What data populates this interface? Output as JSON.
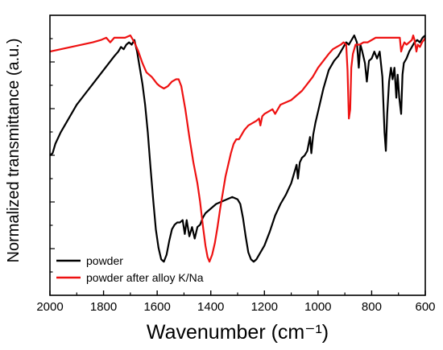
{
  "chart_data": {
    "type": "line",
    "xlabel": "Wavenumber (cm⁻¹)",
    "ylabel": "Normalized transmittance (a.u.)",
    "xlim": [
      2000,
      600
    ],
    "ylim": [
      0,
      1
    ],
    "x_reversed": true,
    "x_ticks": [
      2000,
      1800,
      1600,
      1400,
      1200,
      1000,
      800,
      600
    ],
    "x_tick_labels": [
      "2000",
      "1800",
      "1600",
      "1400",
      "1200",
      "1000",
      "800",
      "600"
    ],
    "y_tick_labels_shown": false,
    "grid": false,
    "legend_position": "bottom-left",
    "series": [
      {
        "name": "powder",
        "color": "#000000",
        "points": [
          [
            2000,
            0.48
          ],
          [
            1990,
            0.49
          ],
          [
            1980,
            0.53
          ],
          [
            1960,
            0.58
          ],
          [
            1940,
            0.62
          ],
          [
            1920,
            0.66
          ],
          [
            1900,
            0.7
          ],
          [
            1880,
            0.73
          ],
          [
            1860,
            0.76
          ],
          [
            1840,
            0.79
          ],
          [
            1820,
            0.82
          ],
          [
            1800,
            0.85
          ],
          [
            1780,
            0.88
          ],
          [
            1760,
            0.91
          ],
          [
            1745,
            0.93
          ],
          [
            1735,
            0.95
          ],
          [
            1725,
            0.94
          ],
          [
            1715,
            0.96
          ],
          [
            1705,
            0.97
          ],
          [
            1695,
            0.96
          ],
          [
            1685,
            0.98
          ],
          [
            1675,
            0.93
          ],
          [
            1665,
            0.86
          ],
          [
            1655,
            0.79
          ],
          [
            1645,
            0.7
          ],
          [
            1635,
            0.58
          ],
          [
            1625,
            0.43
          ],
          [
            1615,
            0.29
          ],
          [
            1605,
            0.16
          ],
          [
            1595,
            0.08
          ],
          [
            1585,
            0.03
          ],
          [
            1575,
            0.02
          ],
          [
            1565,
            0.05
          ],
          [
            1555,
            0.11
          ],
          [
            1545,
            0.16
          ],
          [
            1535,
            0.18
          ],
          [
            1525,
            0.19
          ],
          [
            1515,
            0.19
          ],
          [
            1505,
            0.2
          ],
          [
            1497,
            0.14
          ],
          [
            1490,
            0.2
          ],
          [
            1480,
            0.13
          ],
          [
            1470,
            0.17
          ],
          [
            1460,
            0.12
          ],
          [
            1450,
            0.17
          ],
          [
            1440,
            0.18
          ],
          [
            1430,
            0.21
          ],
          [
            1420,
            0.23
          ],
          [
            1400,
            0.25
          ],
          [
            1380,
            0.27
          ],
          [
            1360,
            0.28
          ],
          [
            1340,
            0.29
          ],
          [
            1320,
            0.3
          ],
          [
            1300,
            0.29
          ],
          [
            1290,
            0.27
          ],
          [
            1280,
            0.21
          ],
          [
            1270,
            0.13
          ],
          [
            1260,
            0.06
          ],
          [
            1250,
            0.03
          ],
          [
            1240,
            0.02
          ],
          [
            1230,
            0.03
          ],
          [
            1220,
            0.05
          ],
          [
            1200,
            0.09
          ],
          [
            1180,
            0.15
          ],
          [
            1160,
            0.22
          ],
          [
            1140,
            0.27
          ],
          [
            1120,
            0.31
          ],
          [
            1100,
            0.36
          ],
          [
            1090,
            0.4
          ],
          [
            1080,
            0.44
          ],
          [
            1075,
            0.38
          ],
          [
            1068,
            0.45
          ],
          [
            1060,
            0.47
          ],
          [
            1050,
            0.48
          ],
          [
            1040,
            0.5
          ],
          [
            1030,
            0.56
          ],
          [
            1025,
            0.49
          ],
          [
            1018,
            0.57
          ],
          [
            1010,
            0.62
          ],
          [
            1000,
            0.67
          ],
          [
            990,
            0.72
          ],
          [
            980,
            0.77
          ],
          [
            970,
            0.81
          ],
          [
            960,
            0.85
          ],
          [
            950,
            0.87
          ],
          [
            940,
            0.89
          ],
          [
            925,
            0.91
          ],
          [
            915,
            0.93
          ],
          [
            905,
            0.95
          ],
          [
            895,
            0.97
          ],
          [
            885,
            0.96
          ],
          [
            875,
            0.98
          ],
          [
            865,
            1.0
          ],
          [
            855,
            0.97
          ],
          [
            848,
            0.86
          ],
          [
            842,
            0.96
          ],
          [
            835,
            0.93
          ],
          [
            825,
            0.88
          ],
          [
            818,
            0.8
          ],
          [
            810,
            0.89
          ],
          [
            800,
            0.9
          ],
          [
            790,
            0.93
          ],
          [
            780,
            0.9
          ],
          [
            770,
            0.93
          ],
          [
            760,
            0.82
          ],
          [
            752,
            0.58
          ],
          [
            747,
            0.5
          ],
          [
            742,
            0.66
          ],
          [
            735,
            0.8
          ],
          [
            728,
            0.86
          ],
          [
            722,
            0.81
          ],
          [
            715,
            0.86
          ],
          [
            708,
            0.73
          ],
          [
            703,
            0.83
          ],
          [
            697,
            0.73
          ],
          [
            690,
            0.66
          ],
          [
            685,
            0.83
          ],
          [
            680,
            0.88
          ],
          [
            670,
            0.9
          ],
          [
            660,
            0.93
          ],
          [
            650,
            0.95
          ],
          [
            640,
            0.97
          ],
          [
            630,
            0.98
          ],
          [
            620,
            0.97
          ],
          [
            610,
            0.99
          ],
          [
            600,
            1.0
          ]
        ]
      },
      {
        "name": "powder after alloy K/Na",
        "color": "#ee1111",
        "points": [
          [
            2000,
            0.93
          ],
          [
            1960,
            0.94
          ],
          [
            1920,
            0.95
          ],
          [
            1880,
            0.96
          ],
          [
            1840,
            0.97
          ],
          [
            1810,
            0.98
          ],
          [
            1790,
            0.99
          ],
          [
            1775,
            0.97
          ],
          [
            1760,
            0.99
          ],
          [
            1740,
            0.99
          ],
          [
            1720,
            0.99
          ],
          [
            1700,
            1.0
          ],
          [
            1685,
            0.97
          ],
          [
            1670,
            0.93
          ],
          [
            1655,
            0.88
          ],
          [
            1640,
            0.84
          ],
          [
            1620,
            0.82
          ],
          [
            1600,
            0.79
          ],
          [
            1590,
            0.78
          ],
          [
            1575,
            0.77
          ],
          [
            1560,
            0.78
          ],
          [
            1545,
            0.8
          ],
          [
            1530,
            0.81
          ],
          [
            1520,
            0.81
          ],
          [
            1510,
            0.78
          ],
          [
            1495,
            0.68
          ],
          [
            1480,
            0.56
          ],
          [
            1465,
            0.45
          ],
          [
            1450,
            0.36
          ],
          [
            1440,
            0.28
          ],
          [
            1430,
            0.18
          ],
          [
            1420,
            0.09
          ],
          [
            1412,
            0.04
          ],
          [
            1405,
            0.02
          ],
          [
            1395,
            0.05
          ],
          [
            1385,
            0.1
          ],
          [
            1375,
            0.17
          ],
          [
            1365,
            0.25
          ],
          [
            1355,
            0.32
          ],
          [
            1345,
            0.39
          ],
          [
            1335,
            0.44
          ],
          [
            1325,
            0.49
          ],
          [
            1315,
            0.53
          ],
          [
            1305,
            0.55
          ],
          [
            1295,
            0.55
          ],
          [
            1285,
            0.57
          ],
          [
            1275,
            0.59
          ],
          [
            1260,
            0.61
          ],
          [
            1245,
            0.62
          ],
          [
            1230,
            0.63
          ],
          [
            1220,
            0.64
          ],
          [
            1215,
            0.61
          ],
          [
            1208,
            0.65
          ],
          [
            1200,
            0.66
          ],
          [
            1185,
            0.67
          ],
          [
            1170,
            0.68
          ],
          [
            1160,
            0.66
          ],
          [
            1150,
            0.68
          ],
          [
            1140,
            0.7
          ],
          [
            1120,
            0.71
          ],
          [
            1100,
            0.72
          ],
          [
            1080,
            0.74
          ],
          [
            1060,
            0.76
          ],
          [
            1040,
            0.79
          ],
          [
            1020,
            0.82
          ],
          [
            1000,
            0.86
          ],
          [
            980,
            0.89
          ],
          [
            960,
            0.92
          ],
          [
            945,
            0.94
          ],
          [
            930,
            0.95
          ],
          [
            915,
            0.96
          ],
          [
            905,
            0.97
          ],
          [
            895,
            0.96
          ],
          [
            890,
            0.85
          ],
          [
            885,
            0.64
          ],
          [
            880,
            0.68
          ],
          [
            876,
            0.86
          ],
          [
            870,
            0.92
          ],
          [
            860,
            0.96
          ],
          [
            845,
            0.96
          ],
          [
            830,
            0.97
          ],
          [
            815,
            0.97
          ],
          [
            800,
            0.98
          ],
          [
            785,
            0.99
          ],
          [
            770,
            0.99
          ],
          [
            750,
            0.99
          ],
          [
            730,
            0.99
          ],
          [
            710,
            0.99
          ],
          [
            695,
            0.99
          ],
          [
            690,
            0.93
          ],
          [
            685,
            0.95
          ],
          [
            678,
            0.97
          ],
          [
            670,
            0.96
          ],
          [
            660,
            0.97
          ],
          [
            650,
            0.98
          ],
          [
            645,
            1.0
          ],
          [
            640,
            0.98
          ],
          [
            633,
            0.93
          ],
          [
            628,
            0.96
          ],
          [
            620,
            0.95
          ],
          [
            612,
            0.97
          ],
          [
            605,
            0.98
          ],
          [
            600,
            0.99
          ]
        ]
      }
    ]
  }
}
